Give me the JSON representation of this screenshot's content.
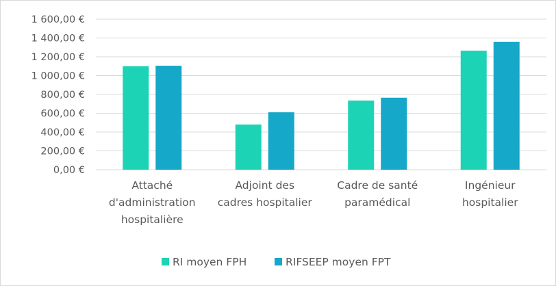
{
  "chart_data": {
    "type": "bar",
    "title": "",
    "xlabel": "",
    "ylabel": "",
    "categories": [
      [
        "Attaché",
        "d'administration",
        "hospitalière"
      ],
      [
        "Adjoint des",
        "cadres hospitalier"
      ],
      [
        "Cadre de santé",
        "paramédical"
      ],
      [
        "Ingénieur",
        "hospitalier"
      ]
    ],
    "series": [
      {
        "name": "RI moyen FPH",
        "color": "#1dd3b5",
        "values": [
          1100,
          480,
          735,
          1265
        ]
      },
      {
        "name": "RIFSEEP moyen FPT",
        "color": "#15a8c8",
        "values": [
          1105,
          610,
          765,
          1360
        ]
      }
    ],
    "ylim": [
      0,
      1600
    ],
    "ytick_values": [
      0,
      200,
      400,
      600,
      800,
      1000,
      1200,
      1400,
      1600
    ],
    "ytick_labels": [
      "0,00 €",
      "200,00 €",
      "400,00 €",
      "600,00 €",
      "800,00 €",
      "1 000,00 €",
      "1 200,00 €",
      "1 400,00 €",
      "1 600,00 €"
    ],
    "grid": true,
    "legend_position": "bottom"
  },
  "colors": {
    "grid": "#d9d9d9",
    "axis": "#d9d9d9",
    "text": "#595959"
  }
}
